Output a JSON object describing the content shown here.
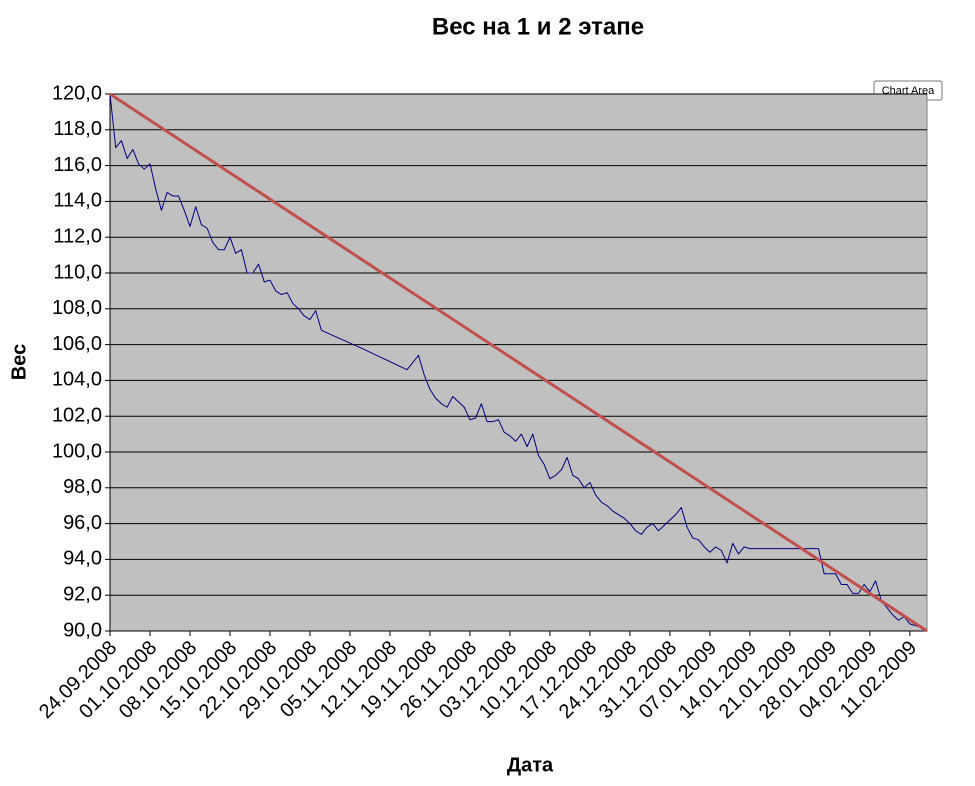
{
  "chart_data": {
    "type": "line",
    "title": "Вес на 1 и 2 этапе",
    "x_label": "Дата",
    "y_label": "Вес",
    "tooltip": "Chart Area",
    "ylim": [
      90,
      120
    ],
    "yticks": [
      {
        "value": 90,
        "label": "90,0"
      },
      {
        "value": 92,
        "label": "92,0"
      },
      {
        "value": 94,
        "label": "94,0"
      },
      {
        "value": 96,
        "label": "96,0"
      },
      {
        "value": 98,
        "label": "98,0"
      },
      {
        "value": 100,
        "label": "100,0"
      },
      {
        "value": 102,
        "label": "102,0"
      },
      {
        "value": 104,
        "label": "104,0"
      },
      {
        "value": 106,
        "label": "106,0"
      },
      {
        "value": 108,
        "label": "108,0"
      },
      {
        "value": 110,
        "label": "110,0"
      },
      {
        "value": 112,
        "label": "112,0"
      },
      {
        "value": 114,
        "label": "114,0"
      },
      {
        "value": 116,
        "label": "116,0"
      },
      {
        "value": 118,
        "label": "118,0"
      },
      {
        "value": 120,
        "label": "120,0"
      }
    ],
    "xlim": [
      "24.09.2008",
      "14.02.2009"
    ],
    "xticks": [
      "24.09.2008",
      "01.10.2008",
      "08.10.2008",
      "15.10.2008",
      "22.10.2008",
      "29.10.2008",
      "05.11.2008",
      "12.11.2008",
      "19.11.2008",
      "26.11.2008",
      "03.12.2008",
      "10.12.2008",
      "17.12.2008",
      "24.12.2008",
      "31.12.2008",
      "07.01.2009",
      "14.01.2009",
      "21.01.2009",
      "28.01.2009",
      "04.02.2009",
      "11.02.2009"
    ],
    "grid": true,
    "plot_background": "#c0c0c0",
    "series": [
      {
        "color": "#000080",
        "width": 1,
        "x": [
          "24.09.2008",
          "25.09.2008",
          "26.09.2008",
          "27.09.2008",
          "28.09.2008",
          "29.09.2008",
          "30.09.2008",
          "01.10.2008",
          "02.10.2008",
          "03.10.2008",
          "04.10.2008",
          "05.10.2008",
          "06.10.2008",
          "07.10.2008",
          "08.10.2008",
          "09.10.2008",
          "10.10.2008",
          "11.10.2008",
          "12.10.2008",
          "13.10.2008",
          "14.10.2008",
          "15.10.2008",
          "16.10.2008",
          "17.10.2008",
          "18.10.2008",
          "19.10.2008",
          "20.10.2008",
          "21.10.2008",
          "22.10.2008",
          "23.10.2008",
          "24.10.2008",
          "25.10.2008",
          "26.10.2008",
          "27.10.2008",
          "28.10.2008",
          "29.10.2008",
          "30.10.2008",
          "31.10.2008",
          "07.11.2008",
          "15.11.2008",
          "17.11.2008",
          "18.11.2008",
          "19.11.2008",
          "20.11.2008",
          "21.11.2008",
          "22.11.2008",
          "23.11.2008",
          "24.11.2008",
          "25.11.2008",
          "26.11.2008",
          "27.11.2008",
          "28.11.2008",
          "29.11.2008",
          "30.11.2008",
          "01.12.2008",
          "02.12.2008",
          "03.12.2008",
          "04.12.2008",
          "05.12.2008",
          "06.12.2008",
          "07.12.2008",
          "08.12.2008",
          "09.12.2008",
          "10.12.2008",
          "11.12.2008",
          "12.12.2008",
          "13.12.2008",
          "14.12.2008",
          "15.12.2008",
          "16.12.2008",
          "17.12.2008",
          "18.12.2008",
          "19.12.2008",
          "20.12.2008",
          "21.12.2008",
          "22.12.2008",
          "23.12.2008",
          "24.12.2008",
          "25.12.2008",
          "26.12.2008",
          "27.12.2008",
          "28.12.2008",
          "29.12.2008",
          "30.12.2008",
          "31.12.2008",
          "01.01.2009",
          "02.01.2009",
          "03.01.2009",
          "04.01.2009",
          "05.01.2009",
          "06.01.2009",
          "07.01.2009",
          "08.01.2009",
          "09.01.2009",
          "10.01.2009",
          "11.01.2009",
          "12.01.2009",
          "13.01.2009",
          "14.01.2009",
          "26.01.2009",
          "27.01.2009",
          "29.01.2009",
          "30.01.2009",
          "31.01.2009",
          "01.02.2009",
          "02.02.2009",
          "03.02.2009",
          "04.02.2009",
          "05.02.2009",
          "06.02.2009",
          "07.02.2009",
          "08.02.2009",
          "09.02.2009",
          "10.02.2009",
          "11.02.2009",
          "12.02.2009",
          "13.02.2009",
          "14.02.2009"
        ],
        "values": [
          120.0,
          117.0,
          117.4,
          116.4,
          116.9,
          116.1,
          115.8,
          116.1,
          114.7,
          113.5,
          114.5,
          114.3,
          114.3,
          113.5,
          112.6,
          113.7,
          112.7,
          112.5,
          111.7,
          111.3,
          111.3,
          112.0,
          111.1,
          111.3,
          110.0,
          110.0,
          110.5,
          109.5,
          109.6,
          109.0,
          108.8,
          108.9,
          108.3,
          108.0,
          107.6,
          107.4,
          107.9,
          106.8,
          105.8,
          104.6,
          105.4,
          104.3,
          103.5,
          103.0,
          102.7,
          102.5,
          103.1,
          102.8,
          102.5,
          101.8,
          101.9,
          102.7,
          101.7,
          101.7,
          101.8,
          101.1,
          100.9,
          100.6,
          101.0,
          100.3,
          101.0,
          99.8,
          99.3,
          98.5,
          98.7,
          99.0,
          99.7,
          98.7,
          98.5,
          98.0,
          98.3,
          97.6,
          97.2,
          97.0,
          96.7,
          96.5,
          96.3,
          96.0,
          95.6,
          95.4,
          95.8,
          96.0,
          95.6,
          95.9,
          96.2,
          96.5,
          96.9,
          95.8,
          95.2,
          95.1,
          94.7,
          94.4,
          94.7,
          94.5,
          93.8,
          94.9,
          94.3,
          94.7,
          94.6,
          94.6,
          93.2,
          93.2,
          92.6,
          92.6,
          92.1,
          92.1,
          92.6,
          92.2,
          92.8,
          91.7,
          91.3,
          90.9,
          90.6,
          90.8,
          90.4,
          90.3,
          90.2,
          90.0
        ]
      },
      {
        "color": "#c0504d",
        "width": 3,
        "x": [
          "24.09.2008",
          "14.02.2009"
        ],
        "values": [
          120,
          90
        ]
      }
    ]
  }
}
